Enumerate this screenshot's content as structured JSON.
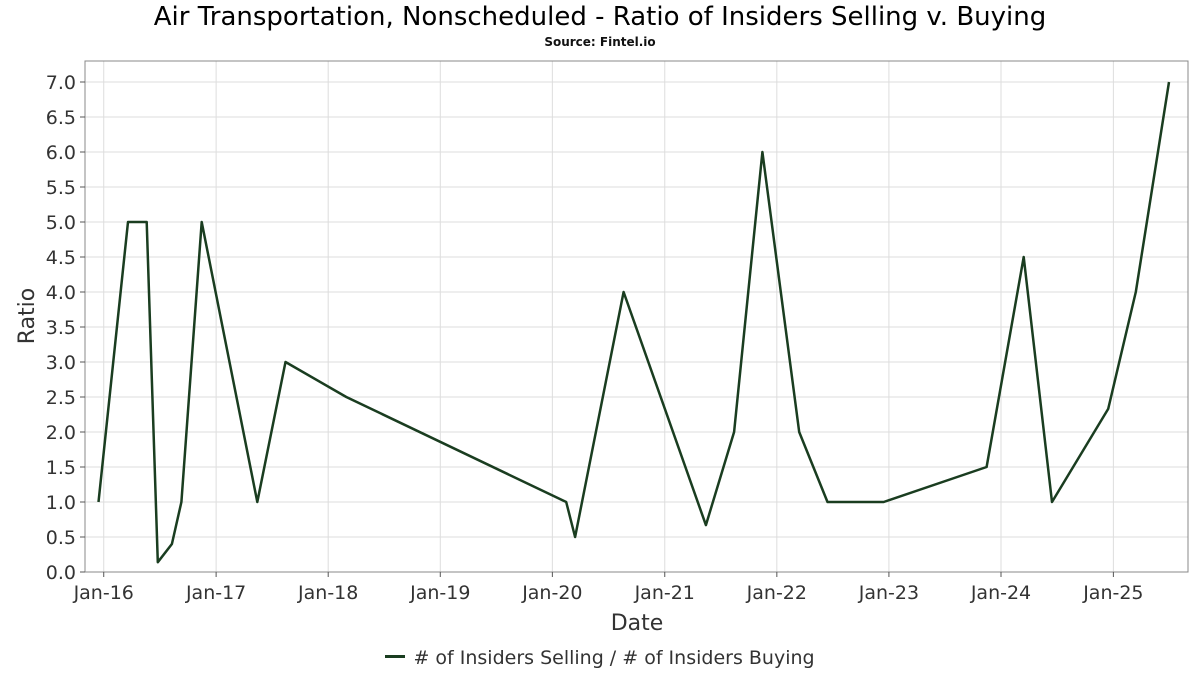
{
  "title": "Air Transportation, Nonscheduled - Ratio of Insiders Selling v. Buying",
  "subtitle": "Source: Fintel.io",
  "colors": {
    "line": "#1a3d20",
    "grid": "#dddddd",
    "frame": "#888888"
  },
  "chart_data": {
    "type": "line",
    "xlabel": "Date",
    "ylabel": "Ratio",
    "ylim": [
      0,
      7.3
    ],
    "xlim": [
      "2015-11-01",
      "2025-09-01"
    ],
    "grid": true,
    "legend_position": "bottom-center",
    "x_ticks": [
      "Jan-16",
      "Jan-17",
      "Jan-18",
      "Jan-19",
      "Jan-20",
      "Jan-21",
      "Jan-22",
      "Jan-23",
      "Jan-24",
      "Jan-25"
    ],
    "x_tick_dates": [
      "2016-01-01",
      "2017-01-01",
      "2018-01-01",
      "2019-01-01",
      "2020-01-01",
      "2021-01-01",
      "2022-01-01",
      "2023-01-01",
      "2024-01-01",
      "2025-01-01"
    ],
    "y_ticks": [
      "0.0",
      "0.5",
      "1.0",
      "1.5",
      "2.0",
      "2.5",
      "3.0",
      "3.5",
      "4.0",
      "4.5",
      "5.0",
      "5.5",
      "6.0",
      "6.5",
      "7.0"
    ],
    "series": [
      {
        "name": "# of Insiders Selling / # of Insiders Buying",
        "points": [
          {
            "x": "2015-12-15",
            "y": 1.0
          },
          {
            "x": "2016-03-20",
            "y": 5.0
          },
          {
            "x": "2016-05-20",
            "y": 5.0
          },
          {
            "x": "2016-06-25",
            "y": 0.14
          },
          {
            "x": "2016-08-10",
            "y": 0.4
          },
          {
            "x": "2016-09-10",
            "y": 1.0
          },
          {
            "x": "2016-11-15",
            "y": 5.0
          },
          {
            "x": "2017-05-15",
            "y": 1.0
          },
          {
            "x": "2017-08-15",
            "y": 3.0
          },
          {
            "x": "2018-03-01",
            "y": 2.5
          },
          {
            "x": "2020-02-15",
            "y": 1.0
          },
          {
            "x": "2020-03-15",
            "y": 0.5
          },
          {
            "x": "2020-08-20",
            "y": 4.0
          },
          {
            "x": "2021-05-15",
            "y": 0.67
          },
          {
            "x": "2021-08-15",
            "y": 2.0
          },
          {
            "x": "2021-11-15",
            "y": 6.0
          },
          {
            "x": "2022-03-15",
            "y": 2.0
          },
          {
            "x": "2022-06-15",
            "y": 1.0
          },
          {
            "x": "2022-12-15",
            "y": 1.0
          },
          {
            "x": "2023-11-15",
            "y": 1.5
          },
          {
            "x": "2024-03-15",
            "y": 4.5
          },
          {
            "x": "2024-06-15",
            "y": 1.0
          },
          {
            "x": "2024-12-15",
            "y": 2.33
          },
          {
            "x": "2025-03-15",
            "y": 4.0
          },
          {
            "x": "2025-07-01",
            "y": 7.0
          }
        ]
      }
    ]
  }
}
